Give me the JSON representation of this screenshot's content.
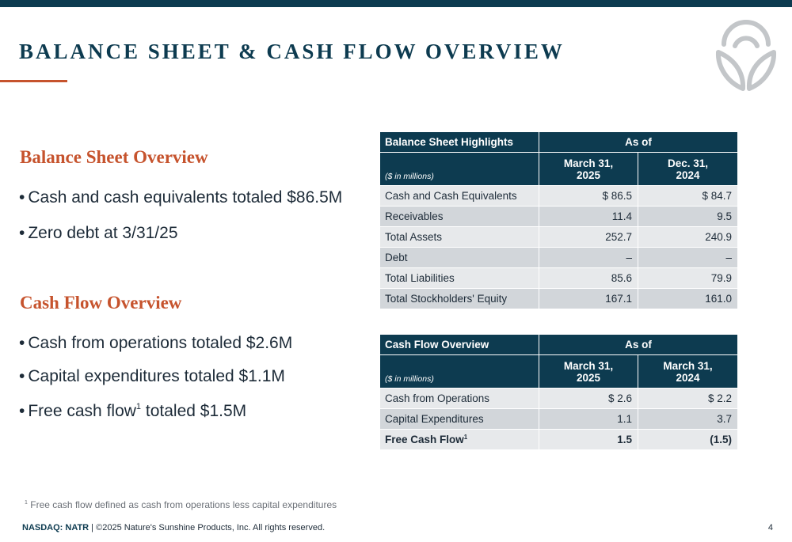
{
  "slide": {
    "title": "BALANCE SHEET & CASH FLOW OVERVIEW",
    "page_number": "4"
  },
  "balance_overview": {
    "heading": "Balance Sheet Overview",
    "bullets": [
      "Cash and cash equivalents totaled $86.5M",
      "Zero debt at 3/31/25"
    ]
  },
  "cash_flow_overview": {
    "heading": "Cash Flow Overview",
    "bullets": [
      "Cash from operations totaled $2.6M",
      "Capital expenditures totaled $1.1M"
    ],
    "bullet3": {
      "pre": "Free cash flow",
      "sup": "1",
      "post": " totaled $1.5M"
    }
  },
  "bullet_char": "•",
  "balance_table": {
    "title": "Balance Sheet Highlights",
    "as_of": "As of",
    "units": "($ in millions)",
    "columns": [
      {
        "line1": "March 31,",
        "line2": "2025"
      },
      {
        "line1": "Dec. 31,",
        "line2": "2024"
      }
    ],
    "rows": [
      {
        "label": "Cash and Cash Equivalents",
        "v1": "$ 86.5",
        "v2": "$ 84.7"
      },
      {
        "label": "Receivables",
        "v1": "11.4",
        "v2": "9.5"
      },
      {
        "label": "Total Assets",
        "v1": "252.7",
        "v2": "240.9"
      },
      {
        "label": "Debt",
        "v1": "–",
        "v2": "–"
      },
      {
        "label": "Total Liabilities",
        "v1": "85.6",
        "v2": "79.9"
      },
      {
        "label": "Total Stockholders' Equity",
        "v1": "167.1",
        "v2": "161.0"
      }
    ]
  },
  "cash_table": {
    "title": "Cash Flow Overview",
    "as_of": "As of",
    "units": "($ in millions)",
    "columns": [
      {
        "line1": "March 31,",
        "line2": "2025"
      },
      {
        "line1": "March 31,",
        "line2": "2024"
      }
    ],
    "rows": [
      {
        "label": "Cash from Operations",
        "v1": "$ 2.6",
        "v2": "$ 2.2"
      },
      {
        "label": "Capital Expenditures",
        "v1": "1.1",
        "v2": "3.7"
      }
    ],
    "total_row": {
      "label": "Free Cash Flow",
      "sup": "1",
      "v1": "1.5",
      "v2": "(1.5)"
    }
  },
  "footnote": {
    "marker": "1",
    "text": "Free cash flow defined as cash from operations less capital expenditures"
  },
  "footer": {
    "ticker": "NASDAQ: NATR",
    "separator": " | ",
    "copyright": "©2025 Nature's Sunshine Products, Inc. All rights reserved."
  },
  "colors": {
    "navy": "#0d3b50",
    "accent": "#c6532d",
    "row_light": "#e7e9eb",
    "row_dark": "#d2d6da",
    "logo_gray": "#c3c6c9"
  },
  "icons": {
    "logo": "nature-leaf-logo-icon"
  }
}
